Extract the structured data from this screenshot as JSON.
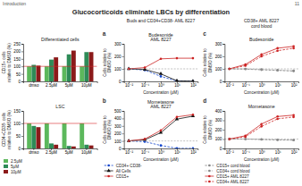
{
  "title": "Glucocorticoids eliminate LBCs by differentiation",
  "annotations": [
    "Introduction",
    "11"
  ],
  "chart_data": [
    {
      "type": "bar",
      "title": "Differentiated cells",
      "ylabel": "CD15+ cells\nrelative to DMSO (%)",
      "categories": [
        "dmso",
        "2.5μM",
        "5μM",
        "10μM"
      ],
      "series": [
        {
          "color": "#5cb85c",
          "values": [
            100,
            100,
            100,
            100
          ]
        },
        {
          "color": "#2e8b57",
          "values": [
            110,
            145,
            180,
            195
          ]
        },
        {
          "color": "#8b1a1a",
          "values": [
            105,
            160,
            205,
            195
          ]
        }
      ],
      "ylim": [
        0,
        250
      ],
      "yticks": [
        0,
        50,
        100,
        150,
        200,
        250
      ],
      "reference_line": 100
    },
    {
      "type": "bar",
      "title": "LSC",
      "ylabel": "CD34+CD38- cells\nrelative to DMSO (%)",
      "categories": [
        "dmso",
        "2.5μM",
        "5μM",
        "10μM"
      ],
      "series": [
        {
          "name": "2.5μM",
          "color": "#5cb85c",
          "values": [
            100,
            100,
            100,
            100
          ]
        },
        {
          "name": "5μM",
          "color": "#2e8b57",
          "values": [
            90,
            20,
            10,
            15
          ]
        },
        {
          "name": "10μM",
          "color": "#8b1a1a",
          "values": [
            85,
            15,
            8,
            12
          ]
        }
      ],
      "ylim": [
        0,
        150
      ],
      "yticks": [
        0,
        50,
        100,
        150
      ],
      "reference_line": 100,
      "legend": "bottom"
    },
    {
      "type": "line",
      "title": "Budesonide\nAML 8227",
      "annotations": [
        "a",
        "Buds and CD34+CD38- AML 8227"
      ],
      "xlabel": "Concentration (μM)",
      "ylabel": "Cells relative to\nDMSO (%)",
      "categories": [
        "10⁻²",
        "10⁻¹",
        "10⁰",
        "10¹",
        "10²"
      ],
      "series": [
        {
          "color": "#1144cc",
          "line_style": "dashed",
          "marker": "circle",
          "values": [
            100,
            90,
            40,
            2,
            1
          ]
        },
        {
          "color": "#111111",
          "line_style": "solid",
          "marker": "triangle",
          "values": [
            100,
            95,
            60,
            5,
            2
          ]
        },
        {
          "color": "#cc2222",
          "line_style": "solid",
          "marker": "circle",
          "values": [
            100,
            110,
            180,
            185,
            185
          ]
        }
      ],
      "ylim": [
        0,
        300
      ],
      "yticks": [
        0,
        100,
        200,
        300
      ],
      "reference_line": 100
    },
    {
      "type": "line",
      "title": "Mometasone\nAML 8227",
      "annotations": [
        "b"
      ],
      "xlabel": "Concentration (μM)",
      "ylabel": "Cells relative to\nDMSO (%)",
      "categories": [
        "10⁻²",
        "10⁻¹",
        "10⁰",
        "10¹",
        "10²"
      ],
      "series": [
        {
          "name": "CD34+ CD38-",
          "color": "#1144cc",
          "line_style": "dashed",
          "marker": "circle",
          "values": [
            100,
            90,
            40,
            2,
            1
          ]
        },
        {
          "name": "All Cells",
          "color": "#111111",
          "line_style": "solid",
          "marker": "triangle",
          "values": [
            100,
            115,
            210,
            390,
            430
          ]
        },
        {
          "name": "CD15+",
          "color": "#cc2222",
          "line_style": "solid",
          "marker": "circle",
          "values": [
            100,
            125,
            240,
            420,
            450
          ]
        }
      ],
      "ylim": [
        0,
        500
      ],
      "yticks": [
        0,
        100,
        200,
        300,
        400,
        500
      ],
      "reference_line": 100,
      "legend": "bottom"
    },
    {
      "type": "line",
      "title": "Budesonide",
      "annotations": [
        "c",
        "CD38+ AML 8227\ncord blood"
      ],
      "xlabel": "Concentration (μM)",
      "ylabel": "Cells relative to\nDMSO (%)",
      "categories": [
        "10⁻²",
        "10⁻¹",
        "10⁰",
        "10¹",
        "10²"
      ],
      "series": [
        {
          "color": "#888888",
          "line_style": "dashed",
          "marker": "circle",
          "values": [
            100,
            98,
            92,
            88,
            82
          ]
        },
        {
          "color": "#888888",
          "line_style": "dotted",
          "marker": "circle",
          "values": [
            100,
            100,
            96,
            90,
            85
          ]
        },
        {
          "color": "#cc2222",
          "line_style": "solid",
          "marker": "circle",
          "values": [
            100,
            135,
            215,
            265,
            280
          ]
        },
        {
          "color": "#cc2222",
          "line_style": "dashed",
          "marker": "circle",
          "values": [
            100,
            125,
            200,
            245,
            265
          ]
        }
      ],
      "ylim": [
        0,
        300
      ],
      "yticks": [
        0,
        100,
        200,
        300
      ],
      "reference_line": 100
    },
    {
      "type": "line",
      "title": "Mometasone",
      "annotations": [
        "d"
      ],
      "xlabel": "Concentration (μM)",
      "ylabel": "Cells relative to\nDMSO (%)",
      "categories": [
        "10⁻²",
        "10⁻¹",
        "10⁰",
        "10¹",
        "10²"
      ],
      "series": [
        {
          "name": "CD15+ cord blood",
          "color": "#888888",
          "line_style": "dashed",
          "marker": "circle",
          "values": [
            100,
            100,
            95,
            90,
            88
          ]
        },
        {
          "name": "CD34+ cord blood",
          "color": "#888888",
          "line_style": "dotted",
          "marker": "circle",
          "values": [
            100,
            100,
            97,
            93,
            90
          ]
        },
        {
          "name": "CD15+ AML 8227",
          "color": "#cc2222",
          "line_style": "solid",
          "marker": "circle",
          "values": [
            100,
            135,
            260,
            340,
            355
          ]
        },
        {
          "name": "CD34+ AML 8227",
          "color": "#cc2222",
          "line_style": "dashed",
          "marker": "circle",
          "values": [
            100,
            125,
            235,
            315,
            335
          ]
        }
      ],
      "ylim": [
        0,
        400
      ],
      "yticks": [
        0,
        100,
        200,
        300,
        400
      ],
      "reference_line": 100,
      "legend": "bottom"
    }
  ]
}
